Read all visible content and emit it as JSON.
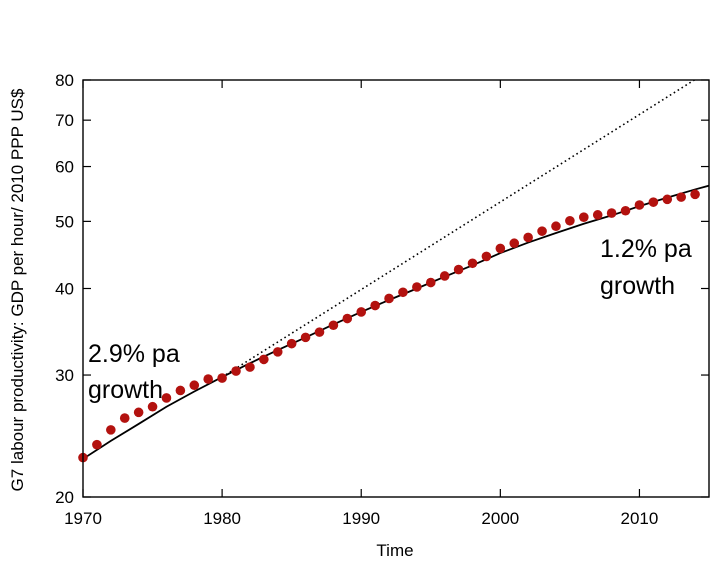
{
  "chart_data": {
    "type": "scatter",
    "xlabel": "Time",
    "ylabel": "G7 labour productivity: GDP per hour/ 2010 PPP US$",
    "xlim": [
      1970,
      2015
    ],
    "ylim": [
      20,
      80
    ],
    "yscale": "log",
    "xticks": [
      1970,
      1980,
      1990,
      2000,
      2010
    ],
    "yticks": [
      20,
      30,
      40,
      50,
      60,
      70,
      80
    ],
    "grid": false,
    "legend": "none",
    "colors": {
      "points": "#b3120f",
      "lines": "#000000"
    },
    "series": [
      {
        "style": "points",
        "x": [
          1970,
          1971,
          1972,
          1973,
          1974,
          1975,
          1976,
          1977,
          1978,
          1979,
          1980,
          1981,
          1982,
          1983,
          1984,
          1985,
          1986,
          1987,
          1988,
          1989,
          1990,
          1991,
          1992,
          1993,
          1994,
          1995,
          1996,
          1997,
          1998,
          1999,
          2000,
          2001,
          2002,
          2003,
          2004,
          2005,
          2006,
          2007,
          2008,
          2009,
          2010,
          2011,
          2012,
          2013,
          2014
        ],
        "y": [
          22.8,
          23.8,
          25.0,
          26.0,
          26.5,
          27.0,
          27.8,
          28.5,
          29.0,
          29.6,
          29.7,
          30.4,
          30.8,
          31.6,
          32.4,
          33.3,
          34.0,
          34.6,
          35.4,
          36.2,
          37.0,
          37.8,
          38.7,
          39.5,
          40.2,
          40.8,
          41.7,
          42.6,
          43.5,
          44.5,
          45.7,
          46.5,
          47.4,
          48.4,
          49.2,
          50.1,
          50.7,
          51.1,
          51.4,
          51.8,
          52.8,
          53.3,
          53.8,
          54.2,
          54.7
        ]
      },
      {
        "style": "solid",
        "x": [
          1970,
          1972,
          1974,
          1976,
          1978,
          1980,
          1982,
          1984,
          1986,
          1988,
          1990,
          1992,
          1994,
          1996,
          1998,
          2000,
          2002,
          2004,
          2006,
          2008,
          2010,
          2012,
          2014,
          2015
        ],
        "y": [
          22.7,
          24.1,
          25.5,
          27.0,
          28.4,
          29.8,
          31.2,
          32.6,
          34.0,
          35.5,
          37.0,
          38.5,
          40.0,
          41.6,
          43.2,
          45.0,
          46.6,
          48.1,
          49.6,
          51.0,
          52.6,
          54.1,
          55.6,
          56.3
        ]
      },
      {
        "style": "dotted",
        "x": [
          1980,
          2015
        ],
        "y": [
          29.8,
          82.5
        ]
      }
    ],
    "annotations": [
      {
        "lines": [
          "2.9% pa",
          "growth"
        ]
      },
      {
        "lines": [
          "1.2% pa",
          "growth"
        ]
      }
    ]
  }
}
